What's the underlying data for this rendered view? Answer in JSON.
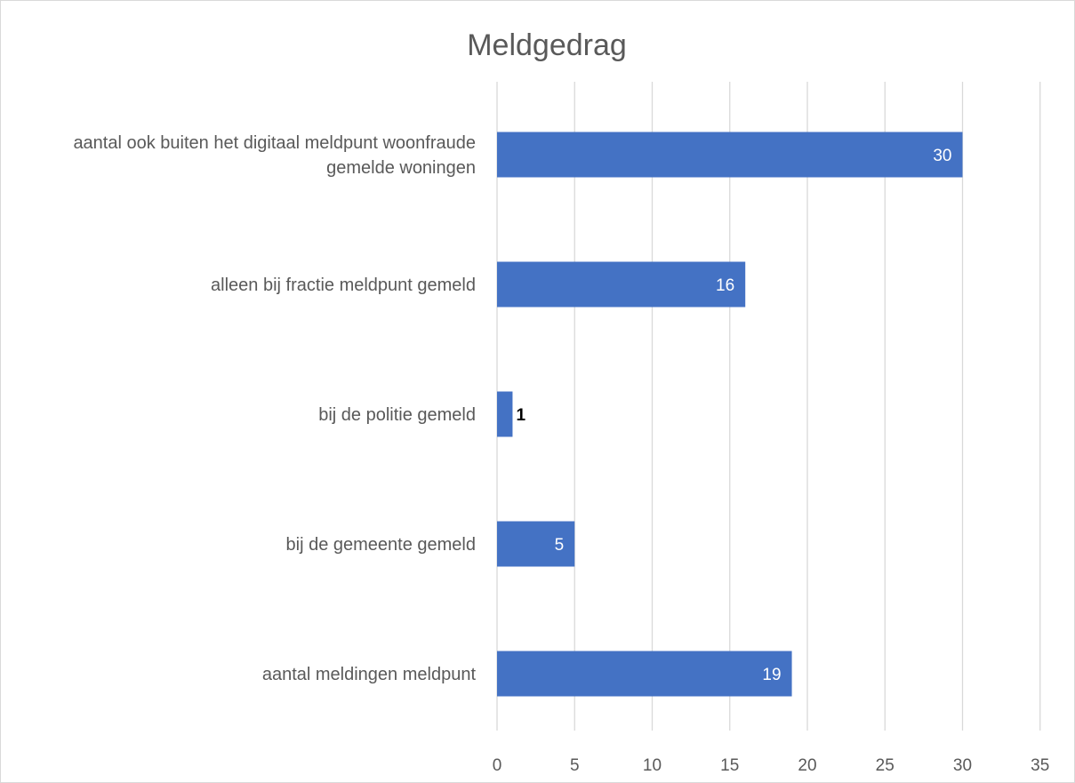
{
  "chart_data": {
    "type": "bar",
    "orientation": "horizontal",
    "title": "Meldgedrag",
    "xlabel": "",
    "ylabel": "",
    "categories": [
      "aantal ook buiten het digitaal meldpunt woonfraude gemelde woningen",
      "alleen bij fractie meldpunt gemeld",
      "bij de politie gemeld",
      "bij de gemeente gemeld",
      "aantal meldingen meldpunt"
    ],
    "category_lines": [
      [
        "aantal ook buiten het digitaal meldpunt woonfraude",
        "gemelde woningen"
      ],
      [
        "alleen bij fractie meldpunt gemeld"
      ],
      [
        "bij de politie gemeld"
      ],
      [
        "bij de gemeente gemeld"
      ],
      [
        "aantal meldingen meldpunt"
      ]
    ],
    "values": [
      30,
      16,
      1,
      5,
      19
    ],
    "data_labels": [
      "30",
      "16",
      "1",
      "5",
      "19"
    ],
    "xlim": [
      0,
      35
    ],
    "xticks": [
      0,
      5,
      10,
      15,
      20,
      25,
      30,
      35
    ],
    "grid": "vertical",
    "legend": "none",
    "colors": {
      "bar": "#4472c4",
      "label_inside": "#ffffff",
      "label_outside": "#000000",
      "grid": "#d9d9d9",
      "text": "#595959",
      "border": "#d9d9d9"
    }
  }
}
